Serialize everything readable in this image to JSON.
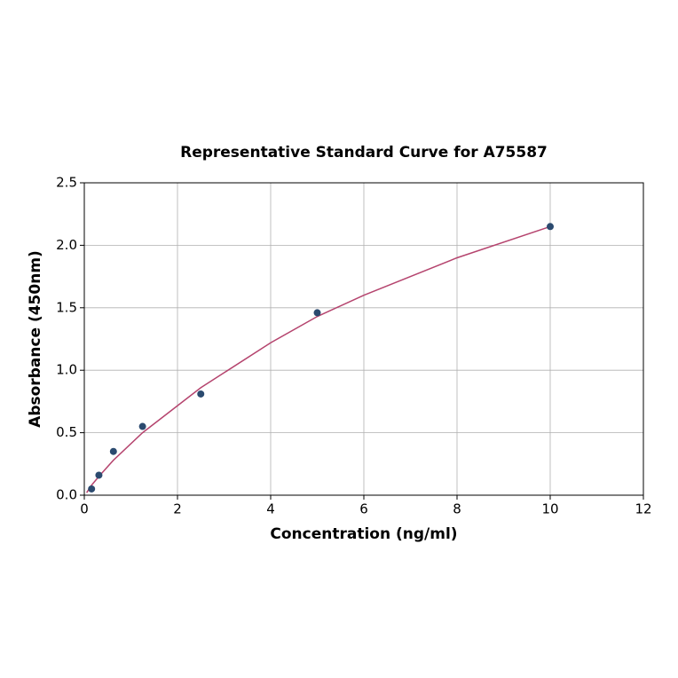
{
  "chart_data": {
    "type": "scatter",
    "title": "Representative Standard Curve for A75587",
    "x_label": "Concentration (ng/ml)",
    "y_label": "Absorbance (450nm)",
    "xlim": [
      0,
      12
    ],
    "xticks": [
      0,
      2,
      4,
      6,
      8,
      10,
      12
    ],
    "ylim": [
      0,
      2.5
    ],
    "yticks": [
      {
        "value": 0,
        "label": "0.0"
      },
      {
        "value": 0.5,
        "label": "0.5"
      },
      {
        "value": 1,
        "label": "1.0"
      },
      {
        "value": 1.5,
        "label": "1.5"
      },
      {
        "value": 2,
        "label": "2.0"
      },
      {
        "value": 2.5,
        "label": "2.5"
      }
    ],
    "grid": true,
    "series": [
      {
        "style": "line",
        "color": "#b5446e",
        "x": [
          0.05,
          0.156,
          0.313,
          0.625,
          1.25,
          2.5,
          4,
          5,
          6,
          8,
          10
        ],
        "values": [
          0.02,
          0.08,
          0.15,
          0.28,
          0.5,
          0.86,
          1.22,
          1.43,
          1.6,
          1.9,
          2.15
        ]
      },
      {
        "style": "markers",
        "color": "#2b4a6f",
        "x": [
          0.156,
          0.313,
          0.625,
          1.25,
          2.5,
          5,
          10
        ],
        "values": [
          0.05,
          0.16,
          0.35,
          0.55,
          0.81,
          1.46,
          2.15
        ]
      }
    ]
  }
}
